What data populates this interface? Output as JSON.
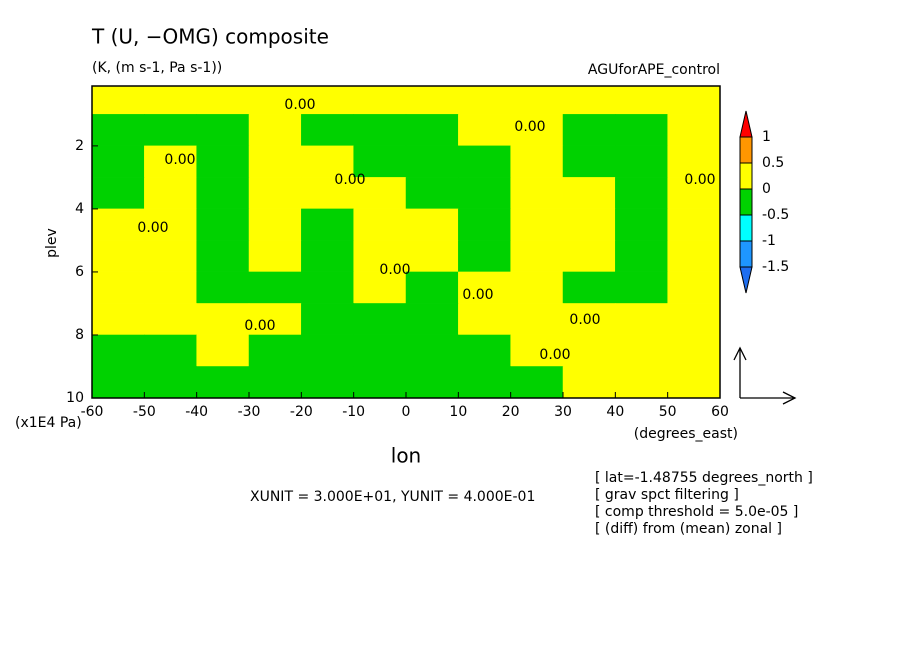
{
  "chart_data": {
    "type": "contour",
    "title": "T (U, −OMG) composite",
    "subtitle": "(K, (m s-1, Pa s-1))",
    "experiment": "AGUforAPE_control",
    "y_label": "plev",
    "y_unit": "(x1E4 Pa)",
    "x_label": "lon",
    "x_unit": "(degrees_east)",
    "vector_units": "XUNIT = 3.000E+01, YUNIT = 4.000E-01",
    "notes": [
      "[ lat=-1.48755 degrees_north ]",
      "[ grav spct filtering ]",
      "[ comp threshold = 5.0e-05 ]",
      "[ (diff) from (mean) zonal ]"
    ],
    "contour_label": "0.00",
    "xlim": [
      -60,
      60
    ],
    "xticks": [
      -60,
      -50,
      -40,
      -30,
      -20,
      -10,
      0,
      10,
      20,
      30,
      40,
      50,
      60
    ],
    "ylim": [
      10,
      0.1
    ],
    "yticks": [
      2,
      4,
      6,
      8,
      10
    ],
    "x": [
      -55,
      -45,
      -35,
      -25,
      -15,
      -5,
      5,
      15,
      25,
      35,
      45,
      55
    ],
    "y": [
      0.5,
      1.5,
      2.5,
      3.5,
      4.5,
      5.5,
      6.5,
      7.5,
      8.5,
      9.5
    ],
    "z": [
      [
        0.2,
        0.2,
        0.2,
        0.2,
        0.2,
        0.2,
        0.2,
        0.2,
        0.2,
        0.2,
        0.2,
        0.2
      ],
      [
        -0.2,
        -0.2,
        -0.2,
        0.2,
        -0.2,
        -0.2,
        -0.2,
        0.2,
        0.2,
        -0.2,
        -0.2,
        0.2
      ],
      [
        -0.2,
        0.2,
        -0.2,
        0.2,
        0.2,
        -0.2,
        -0.2,
        -0.2,
        0.2,
        -0.2,
        -0.2,
        0.2
      ],
      [
        -0.2,
        0.2,
        -0.2,
        0.2,
        0.2,
        0.2,
        -0.2,
        -0.2,
        0.2,
        0.2,
        -0.2,
        0.2
      ],
      [
        0.2,
        0.2,
        -0.2,
        0.2,
        -0.2,
        0.2,
        0.2,
        -0.2,
        0.2,
        0.2,
        -0.2,
        0.2
      ],
      [
        0.2,
        0.2,
        -0.2,
        0.2,
        -0.2,
        0.2,
        0.2,
        -0.2,
        0.2,
        0.2,
        -0.2,
        0.2
      ],
      [
        0.2,
        0.2,
        -0.2,
        -0.2,
        -0.2,
        0.2,
        -0.2,
        0.2,
        0.2,
        -0.2,
        -0.2,
        0.2
      ],
      [
        0.2,
        0.2,
        0.2,
        0.2,
        -0.2,
        -0.2,
        -0.2,
        0.2,
        0.2,
        0.2,
        0.2,
        0.2
      ],
      [
        -0.2,
        -0.2,
        0.2,
        -0.2,
        -0.2,
        -0.2,
        -0.2,
        -0.2,
        0.2,
        0.2,
        0.2,
        0.2
      ],
      [
        -0.2,
        -0.2,
        -0.2,
        -0.2,
        -0.2,
        -0.2,
        -0.2,
        -0.2,
        -0.2,
        0.2,
        0.2,
        0.2
      ]
    ],
    "levels": [
      -1.5,
      -1,
      -0.5,
      0,
      0.5,
      1
    ],
    "colors": [
      "#1e6ef0",
      "#1e96ff",
      "#00ffff",
      "#00d200",
      "#ffff00",
      "#ff9600",
      "#ff0000"
    ]
  }
}
